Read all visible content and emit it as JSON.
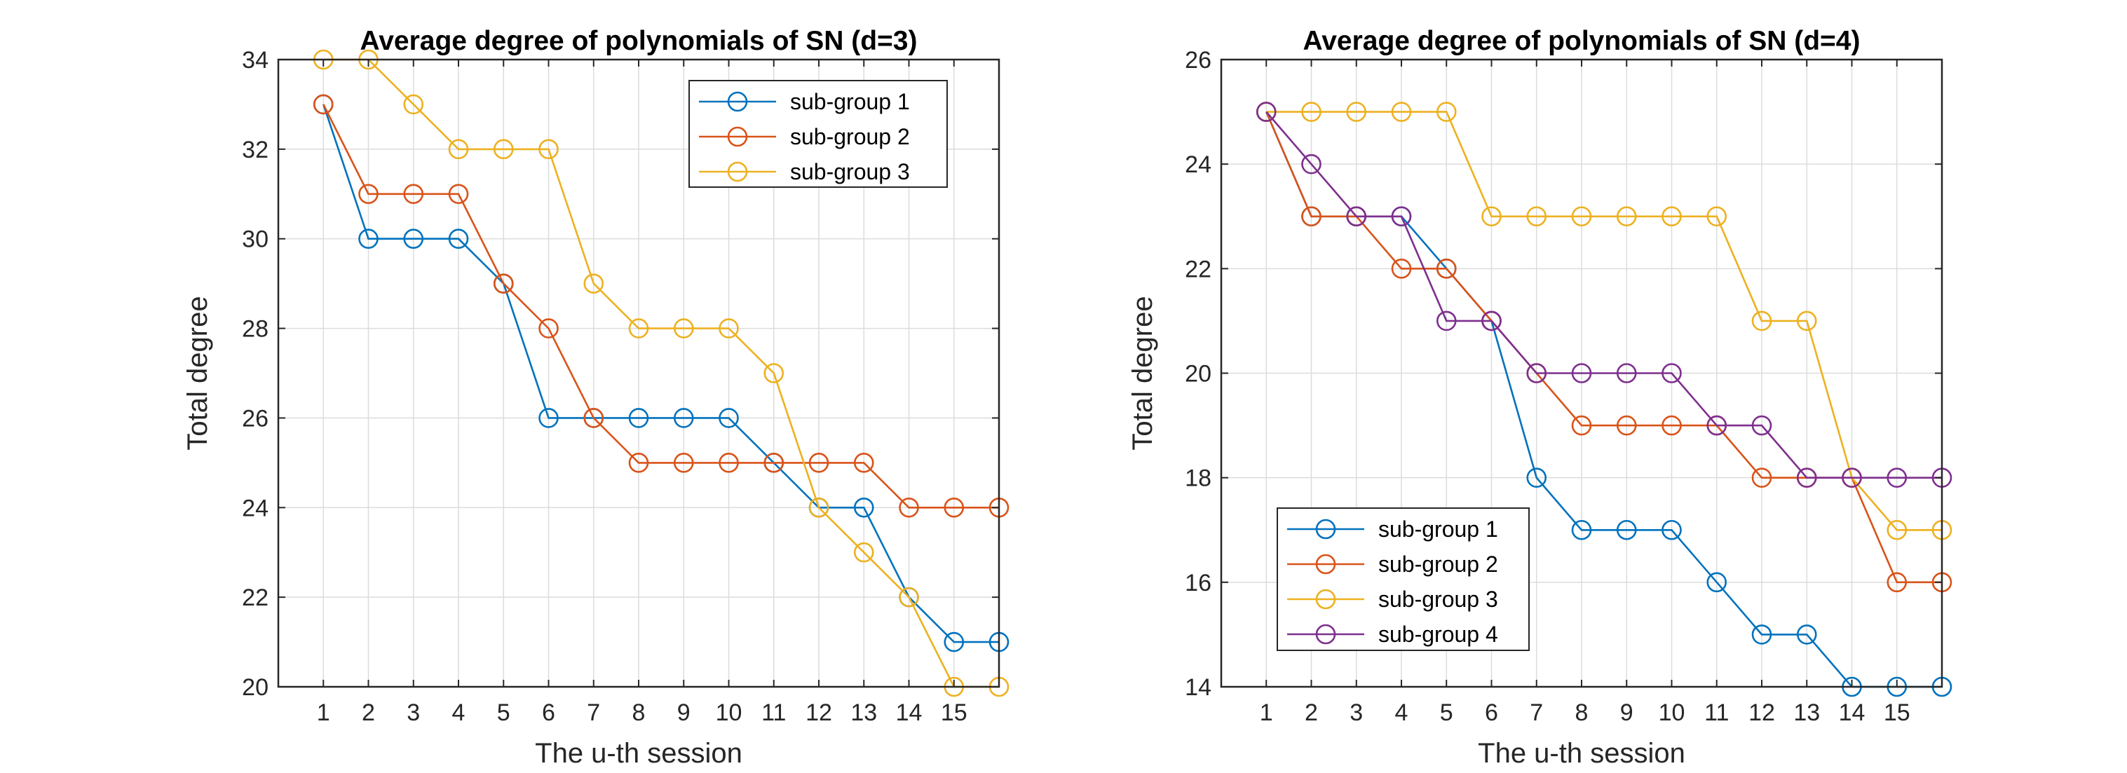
{
  "chart_data": [
    {
      "type": "line",
      "title": "Average degree of polynomials of SN (d=3)",
      "xlabel": "The u-th session",
      "ylabel": "Total degree",
      "xlim": [
        0,
        16
      ],
      "ylim": [
        20,
        34
      ],
      "x_ticks": [
        1,
        2,
        3,
        4,
        5,
        6,
        7,
        8,
        9,
        10,
        11,
        12,
        13,
        14,
        15
      ],
      "y_ticks": [
        20,
        22,
        24,
        26,
        28,
        30,
        32,
        34
      ],
      "grid": true,
      "legend_position": "top-right",
      "marker": "circle",
      "x": [
        1,
        2,
        3,
        4,
        5,
        6,
        7,
        8,
        9,
        10,
        11,
        12,
        13,
        14,
        15,
        16
      ],
      "series": [
        {
          "name": "sub-group 1",
          "color": "#0072BD",
          "values": [
            33,
            30,
            30,
            30,
            29,
            26,
            26,
            26,
            26,
            26,
            25,
            24,
            24,
            22,
            21,
            21
          ]
        },
        {
          "name": "sub-group 2",
          "color": "#D95319",
          "values": [
            33,
            31,
            31,
            31,
            29,
            28,
            26,
            25,
            25,
            25,
            25,
            25,
            25,
            24,
            24,
            24
          ]
        },
        {
          "name": "sub-group 3",
          "color": "#EDB120",
          "values": [
            34,
            34,
            33,
            32,
            32,
            32,
            29,
            28,
            28,
            28,
            27,
            24,
            23,
            22,
            20,
            20
          ]
        }
      ]
    },
    {
      "type": "line",
      "title": "Average degree of polynomials of SN (d=4)",
      "xlabel": "The u-th session",
      "ylabel": "Total degree",
      "xlim": [
        0,
        16
      ],
      "ylim": [
        14,
        26
      ],
      "x_ticks": [
        1,
        2,
        3,
        4,
        5,
        6,
        7,
        8,
        9,
        10,
        11,
        12,
        13,
        14,
        15
      ],
      "y_ticks": [
        14,
        16,
        18,
        20,
        22,
        24,
        26
      ],
      "grid": true,
      "legend_position": "bottom-left",
      "marker": "circle",
      "x": [
        1,
        2,
        3,
        4,
        5,
        6,
        7,
        8,
        9,
        10,
        11,
        12,
        13,
        14,
        15,
        16
      ],
      "series": [
        {
          "name": "sub-group 1",
          "color": "#0072BD",
          "values": [
            25,
            23,
            23,
            23,
            22,
            21,
            18,
            17,
            17,
            17,
            16,
            15,
            15,
            14,
            14,
            14
          ]
        },
        {
          "name": "sub-group 2",
          "color": "#D95319",
          "values": [
            25,
            23,
            23,
            22,
            22,
            21,
            20,
            19,
            19,
            19,
            19,
            18,
            18,
            18,
            16,
            16
          ]
        },
        {
          "name": "sub-group 3",
          "color": "#EDB120",
          "values": [
            25,
            25,
            25,
            25,
            25,
            23,
            23,
            23,
            23,
            23,
            23,
            21,
            21,
            18,
            17,
            17
          ]
        },
        {
          "name": "sub-group 4",
          "color": "#7E2F8E",
          "values": [
            25,
            24,
            23,
            23,
            21,
            21,
            20,
            20,
            20,
            20,
            19,
            19,
            18,
            18,
            18,
            18
          ]
        }
      ]
    }
  ]
}
